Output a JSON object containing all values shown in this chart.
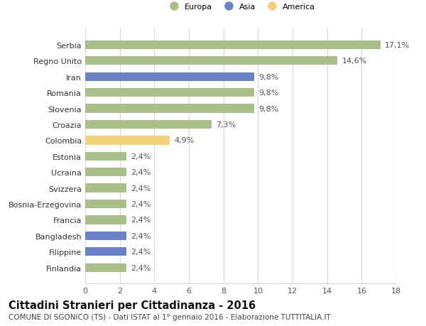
{
  "categories": [
    "Finlandia",
    "Filippine",
    "Bangladesh",
    "Francia",
    "Bosnia-Erzegovina",
    "Svizzera",
    "Ucraina",
    "Estonia",
    "Colombia",
    "Croazia",
    "Slovenia",
    "Romania",
    "Iran",
    "Regno Unito",
    "Serbia"
  ],
  "values": [
    2.4,
    2.4,
    2.4,
    2.4,
    2.4,
    2.4,
    2.4,
    2.4,
    4.9,
    7.3,
    9.8,
    9.8,
    9.8,
    14.6,
    17.1
  ],
  "labels": [
    "2,4%",
    "2,4%",
    "2,4%",
    "2,4%",
    "2,4%",
    "2,4%",
    "2,4%",
    "2,4%",
    "4,9%",
    "7,3%",
    "9,8%",
    "9,8%",
    "9,8%",
    "14,6%",
    "17,1%"
  ],
  "colors": [
    "#a8bf8a",
    "#6b83c4",
    "#6b83c4",
    "#a8bf8a",
    "#a8bf8a",
    "#a8bf8a",
    "#a8bf8a",
    "#a8bf8a",
    "#f5d07a",
    "#a8bf8a",
    "#a8bf8a",
    "#a8bf8a",
    "#6b83c4",
    "#a8bf8a",
    "#a8bf8a"
  ],
  "legend": [
    {
      "label": "Europa",
      "color": "#a8bf8a"
    },
    {
      "label": "Asia",
      "color": "#6b83c4"
    },
    {
      "label": "America",
      "color": "#f5d07a"
    }
  ],
  "xlim": [
    0,
    18
  ],
  "xticks": [
    0,
    2,
    4,
    6,
    8,
    10,
    12,
    14,
    16,
    18
  ],
  "title": "Cittadini Stranieri per Cittadinanza - 2016",
  "subtitle": "COMUNE DI SGONICO (TS) - Dati ISTAT al 1° gennaio 2016 - Elaborazione TUTTITALIA.IT",
  "bar_height": 0.55,
  "grid_color": "#d8d8d8",
  "bg_color": "#ffffff",
  "label_fontsize": 8.0,
  "tick_fontsize": 8.0,
  "title_fontsize": 10.5,
  "subtitle_fontsize": 7.5,
  "label_color": "#555555",
  "ytick_color": "#333333"
}
